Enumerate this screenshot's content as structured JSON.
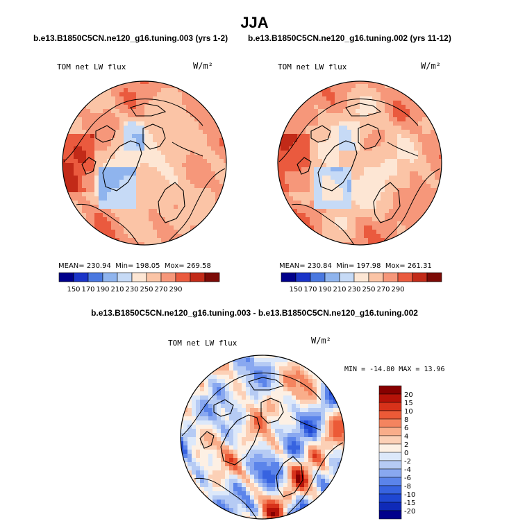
{
  "main_title": "JJA",
  "colors": {
    "abs_palette": [
      "#00008b",
      "#1a34c8",
      "#4a78e0",
      "#8fb4ee",
      "#c6daf6",
      "#fde6d4",
      "#fbc4a6",
      "#f6977a",
      "#ea5a3e",
      "#c22a18",
      "#7c0a06"
    ],
    "diff_palette": [
      "#00008b",
      "#0f2ab8",
      "#1f47d2",
      "#3763e0",
      "#5b84ea",
      "#89a8f0",
      "#b6cbf4",
      "#dce8fa",
      "#fdf0e4",
      "#fcd0b6",
      "#f9ad8a",
      "#f4845f",
      "#ec5a37",
      "#d7321a",
      "#b51208",
      "#870000"
    ],
    "land": "#000000"
  },
  "chart_data": [
    {
      "type": "heatmap",
      "projection": "north-polar-stereographic",
      "case_title": "b.e13.B1850C5CN.ne120_g16.tuning.003 (yrs 1-2)",
      "variable_label": "TOM net LW flux",
      "units": "W/m²",
      "stats": {
        "mean_label": "MEAN=",
        "mean": "230.94",
        "min_label": "Min=",
        "min": "198.05",
        "max_label": "Mox=",
        "max": "269.58"
      },
      "colorbar_levels": [
        150,
        170,
        190,
        210,
        230,
        250,
        270,
        290
      ],
      "colorbar_orientation": "horizontal"
    },
    {
      "type": "heatmap",
      "projection": "north-polar-stereographic",
      "case_title": "b.e13.B1850C5CN.ne120_g16.tuning.002 (yrs 11-12)",
      "variable_label": "TOM net LW flux",
      "units": "W/m²",
      "stats": {
        "mean_label": "MEAN=",
        "mean": "230.84",
        "min_label": "Min=",
        "min": "197.98",
        "max_label": "Mox=",
        "max": "261.31"
      },
      "colorbar_levels": [
        150,
        170,
        190,
        210,
        230,
        250,
        270,
        290
      ],
      "colorbar_orientation": "horizontal"
    },
    {
      "type": "heatmap",
      "projection": "north-polar-stereographic",
      "case_title": "b.e13.B1850C5CN.ne120_g16.tuning.003 - b.e13.B1850C5CN.ne120_g16.tuning.002",
      "variable_label": "TOM net LW flux",
      "units": "W/m²",
      "stats": {
        "min_label": "MIN =",
        "min": "-14.80",
        "max_label": "MAX =",
        "max": "13.96"
      },
      "colorbar_levels": [
        20,
        15,
        10,
        8,
        6,
        4,
        2,
        0,
        -2,
        -4,
        -6,
        -8,
        -10,
        -15,
        -20
      ],
      "colorbar_orientation": "vertical"
    }
  ]
}
